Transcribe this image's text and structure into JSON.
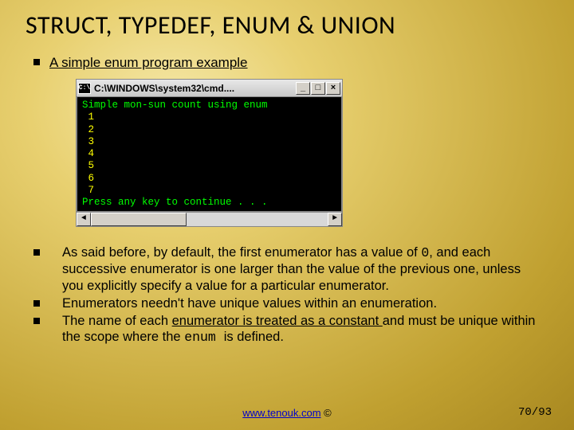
{
  "title": "STRUCT, TYPEDEF, ENUM & UNION",
  "bullet1": {
    "text": "A simple enum program example"
  },
  "cmd": {
    "icon": "C:\\",
    "title": "C:\\WINDOWS\\system32\\cmd....",
    "btn_min": "_",
    "btn_max": "□",
    "btn_close": "×",
    "line_header": "Simple mon-sun count using enum",
    "nums": [
      " 1",
      " 2",
      " 3",
      " 4",
      " 5",
      " 6",
      " 7"
    ],
    "line_press": "Press any key to continue . . .",
    "scroll_left": "◄",
    "scroll_right": "►"
  },
  "bullets": [
    {
      "pre": "As said before, by default, the first enumerator has a value of ",
      "mono1": "0",
      "post": ", and each successive enumerator is one larger than the value of the previous one, unless you explicitly specify a value for a particular enumerator."
    },
    {
      "text": "Enumerators needn't have unique values within an enumeration."
    },
    {
      "pre": "The name of each ",
      "u": "enumerator is treated as a constant ",
      "mid": "and must be unique within the scope where the ",
      "mono1": "enum ",
      "post": "is defined."
    }
  ],
  "footer": {
    "link": "www.tenouk.com",
    "copy": " ©"
  },
  "page": "70/93"
}
